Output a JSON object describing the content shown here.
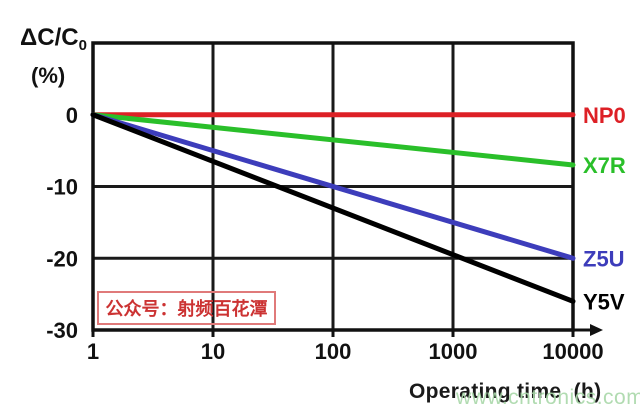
{
  "page": {
    "background": "#ffffff"
  },
  "chart": {
    "ylabel_main": "ΔC/C",
    "ylabel_sub": "0",
    "ylabel_unit": "(%)",
    "xlabel": "Operating time  (h)"
  },
  "watermarks": {
    "account": "公众号：射频百花潭",
    "account_color": "#cc3333",
    "box_border_color": "#e07a7a",
    "site": "www.cntronics.com",
    "site_color": "#a9d8a9"
  },
  "chart_data": {
    "type": "line",
    "title": "",
    "xlabel": "Operating time (h)",
    "ylabel": "ΔC/C0 (%)",
    "x_scale": "log",
    "xlim": [
      1,
      10000
    ],
    "ylim": [
      -30,
      10
    ],
    "x_ticks": [
      1,
      10,
      100,
      1000,
      10000
    ],
    "x_tick_labels": [
      "1",
      "10",
      "100",
      "1000",
      "10000"
    ],
    "y_ticks": [
      0,
      -10,
      -20,
      -30
    ],
    "y_gridlines": [
      0,
      -10,
      -20
    ],
    "grid": true,
    "grid_color": "#1a1a1a",
    "axis_color": "#111111",
    "legend_position": "right-of-line-ends",
    "series": [
      {
        "name": "NP0",
        "color": "#dd2026",
        "x": [
          1,
          10000
        ],
        "y": [
          0,
          0
        ]
      },
      {
        "name": "X7R",
        "color": "#2abf2a",
        "x": [
          1,
          10000
        ],
        "y": [
          0,
          -7
        ]
      },
      {
        "name": "Z5U",
        "color": "#3d3dbb",
        "x": [
          1,
          10000
        ],
        "y": [
          0,
          -20
        ]
      },
      {
        "name": "Y5V",
        "color": "#000000",
        "x": [
          1,
          10000
        ],
        "y": [
          0,
          -26
        ]
      }
    ]
  }
}
